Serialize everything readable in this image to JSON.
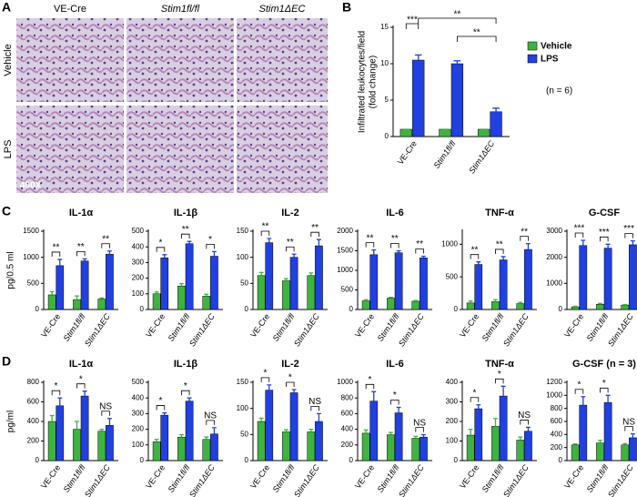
{
  "panel_labels": [
    "A",
    "B",
    "C",
    "D"
  ],
  "panel_a": {
    "columns": [
      "VE-Cre",
      "Stim1fl/fl",
      "Stim1ΔEC"
    ],
    "rows": [
      "Vehicle",
      "LPS"
    ],
    "magnification": "400X"
  },
  "chart_data": [
    {
      "type": "bar",
      "ylabel": [
        "Infiltrated leukocytes/field",
        "(fold change)"
      ],
      "categories": [
        "VE-Cre",
        "Stim1fl/fl",
        "Stim1ΔEC"
      ],
      "series": [
        {
          "name": "Vehicle",
          "color": "#3fb33f",
          "values": [
            1,
            1,
            1
          ],
          "errors": [
            0,
            0,
            0
          ]
        },
        {
          "name": "LPS",
          "color": "#2040e0",
          "values": [
            10.5,
            10,
            3.4
          ],
          "errors": [
            0.7,
            0.4,
            0.5
          ]
        }
      ],
      "annotations": [
        "***",
        "**",
        "**"
      ],
      "note": "(n = 6)",
      "ylim": [
        0,
        15
      ],
      "yticks": [
        0,
        5,
        10,
        15
      ]
    },
    {
      "type": "bar",
      "title": "IL-1α",
      "ylabel": "pg/0.5 ml",
      "categories": [
        "VE-Cre",
        "Stim1fl/fl",
        "Stim1ΔEC"
      ],
      "series": [
        {
          "color": "#3fb33f",
          "values": [
            280,
            190,
            200
          ],
          "errors": [
            60,
            70,
            20
          ]
        },
        {
          "color": "#2040e0",
          "values": [
            840,
            930,
            1060
          ],
          "errors": [
            120,
            40,
            60
          ]
        }
      ],
      "annotations": [
        "**",
        "**",
        "**"
      ],
      "ylim": [
        0,
        1500
      ],
      "yticks": [
        0,
        500,
        1000,
        1500
      ]
    },
    {
      "type": "bar",
      "title": "IL-1β",
      "categories": [
        "VE-Cre",
        "Stim1fl/fl",
        "Stim1ΔEC"
      ],
      "series": [
        {
          "color": "#3fb33f",
          "values": [
            100,
            150,
            85
          ],
          "errors": [
            12,
            15,
            12
          ]
        },
        {
          "color": "#2040e0",
          "values": [
            330,
            420,
            340
          ],
          "errors": [
            20,
            15,
            30
          ]
        }
      ],
      "annotations": [
        "*",
        "**",
        "*"
      ],
      "ylim": [
        0,
        500
      ],
      "yticks": [
        0,
        100,
        200,
        300,
        400,
        500
      ]
    },
    {
      "type": "bar",
      "title": "IL-2",
      "categories": [
        "VE-Cre",
        "Stim1fl/fl",
        "Stim1ΔEC"
      ],
      "series": [
        {
          "color": "#3fb33f",
          "values": [
            65,
            55,
            65
          ],
          "errors": [
            6,
            4,
            5
          ]
        },
        {
          "color": "#2040e0",
          "values": [
            128,
            100,
            122
          ],
          "errors": [
            8,
            6,
            12
          ]
        }
      ],
      "annotations": [
        "**",
        "**",
        "**"
      ],
      "ylim": [
        0,
        150
      ],
      "yticks": [
        0,
        50,
        100,
        150
      ]
    },
    {
      "type": "bar",
      "title": "IL-6",
      "categories": [
        "VE-Cre",
        "Stim1fl/fl",
        "Stim1ΔEC"
      ],
      "series": [
        {
          "color": "#3fb33f",
          "values": [
            220,
            290,
            210
          ],
          "errors": [
            30,
            20,
            20
          ]
        },
        {
          "color": "#2040e0",
          "values": [
            1400,
            1450,
            1320
          ],
          "errors": [
            120,
            50,
            40
          ]
        }
      ],
      "annotations": [
        "**",
        "**",
        "**"
      ],
      "ylim": [
        0,
        2000
      ],
      "yticks": [
        0,
        500,
        1000,
        1500,
        2000
      ]
    },
    {
      "type": "bar",
      "title": "TNF-α",
      "categories": [
        "VE-Cre",
        "Stim1fl/fl",
        "Stim1ΔEC"
      ],
      "series": [
        {
          "color": "#3fb33f",
          "values": [
            100,
            120,
            90
          ],
          "errors": [
            30,
            30,
            20
          ]
        },
        {
          "color": "#2040e0",
          "values": [
            690,
            760,
            920
          ],
          "errors": [
            40,
            50,
            90
          ]
        }
      ],
      "annotations": [
        "**",
        "**",
        "**"
      ],
      "ylim": [
        0,
        1200
      ],
      "yticks": [
        0,
        500,
        1000
      ]
    },
    {
      "type": "bar",
      "title": "G-CSF",
      "categories": [
        "VE-Cre",
        "Stim1fl/fl",
        "Stim1ΔEC"
      ],
      "series": [
        {
          "color": "#3fb33f",
          "values": [
            100,
            200,
            170
          ],
          "errors": [
            20,
            30,
            20
          ]
        },
        {
          "color": "#2040e0",
          "values": [
            2450,
            2350,
            2480
          ],
          "errors": [
            200,
            150,
            150
          ]
        }
      ],
      "annotations": [
        "***",
        "***",
        "***"
      ],
      "ylim": [
        0,
        3000
      ],
      "yticks": [
        0,
        1000,
        2000,
        3000
      ]
    },
    {
      "type": "bar",
      "title": "IL-1α",
      "ylabel": "pg/ml",
      "categories": [
        "VE-Cre",
        "Stim1fl/fl",
        "Stim1ΔEC"
      ],
      "series": [
        {
          "color": "#3fb33f",
          "values": [
            400,
            320,
            300
          ],
          "errors": [
            60,
            80,
            20
          ]
        },
        {
          "color": "#2040e0",
          "values": [
            560,
            660,
            360
          ],
          "errors": [
            80,
            50,
            70
          ]
        }
      ],
      "annotations": [
        "*",
        "*",
        "NS"
      ],
      "ylim": [
        0,
        800
      ],
      "yticks": [
        0,
        200,
        400,
        600,
        800
      ]
    },
    {
      "type": "bar",
      "title": "IL-1β",
      "categories": [
        "VE-Cre",
        "Stim1fl/fl",
        "Stim1ΔEC"
      ],
      "series": [
        {
          "color": "#3fb33f",
          "values": [
            120,
            150,
            135
          ],
          "errors": [
            15,
            15,
            15
          ]
        },
        {
          "color": "#2040e0",
          "values": [
            290,
            380,
            170
          ],
          "errors": [
            15,
            20,
            40
          ]
        }
      ],
      "annotations": [
        "*",
        "*",
        "NS"
      ],
      "ylim": [
        0,
        500
      ],
      "yticks": [
        0,
        100,
        200,
        300,
        400,
        500
      ]
    },
    {
      "type": "bar",
      "title": "IL-2",
      "categories": [
        "VE-Cre",
        "Stim1fl/fl",
        "Stim1ΔEC"
      ],
      "series": [
        {
          "color": "#3fb33f",
          "values": [
            75,
            55,
            55
          ],
          "errors": [
            6,
            4,
            5
          ]
        },
        {
          "color": "#2040e0",
          "values": [
            135,
            130,
            75
          ],
          "errors": [
            10,
            6,
            15
          ]
        }
      ],
      "annotations": [
        "*",
        "*",
        "NS"
      ],
      "ylim": [
        0,
        150
      ],
      "yticks": [
        0,
        50,
        100,
        150
      ]
    },
    {
      "type": "bar",
      "title": "IL-6",
      "categories": [
        "VE-Cre",
        "Stim1fl/fl",
        "Stim1ΔEC"
      ],
      "series": [
        {
          "color": "#3fb33f",
          "values": [
            350,
            330,
            285
          ],
          "errors": [
            40,
            30,
            25
          ]
        },
        {
          "color": "#2040e0",
          "values": [
            760,
            610,
            300
          ],
          "errors": [
            120,
            70,
            30
          ]
        }
      ],
      "annotations": [
        "*",
        "*",
        "NS"
      ],
      "ylim": [
        0,
        1000
      ],
      "yticks": [
        0,
        200,
        400,
        600,
        800,
        1000
      ]
    },
    {
      "type": "bar",
      "title": "TNF-α",
      "categories": [
        "VE-Cre",
        "Stim1fl/fl",
        "Stim1ΔEC"
      ],
      "series": [
        {
          "color": "#3fb33f",
          "values": [
            130,
            175,
            105
          ],
          "errors": [
            30,
            40,
            15
          ]
        },
        {
          "color": "#2040e0",
          "values": [
            265,
            330,
            150
          ],
          "errors": [
            20,
            50,
            20
          ]
        }
      ],
      "annotations": [
        "*",
        "*",
        "NS"
      ],
      "ylim": [
        0,
        400
      ],
      "yticks": [
        0,
        100,
        200,
        300,
        400
      ]
    },
    {
      "type": "bar",
      "title": "G-CSF (n = 3)",
      "categories": [
        "VE-Cre",
        "Stim1fl/fl",
        "Stim1ΔEC"
      ],
      "series": [
        {
          "color": "#3fb33f",
          "values": [
            240,
            270,
            240
          ],
          "errors": [
            15,
            40,
            20
          ]
        },
        {
          "color": "#2040e0",
          "values": [
            850,
            890,
            350
          ],
          "errors": [
            130,
            110,
            60
          ]
        }
      ],
      "annotations": [
        "*",
        "*",
        "NS"
      ],
      "ylim": [
        0,
        1200
      ],
      "yticks": [
        0,
        200,
        400,
        600,
        800,
        1000,
        1200
      ]
    }
  ]
}
